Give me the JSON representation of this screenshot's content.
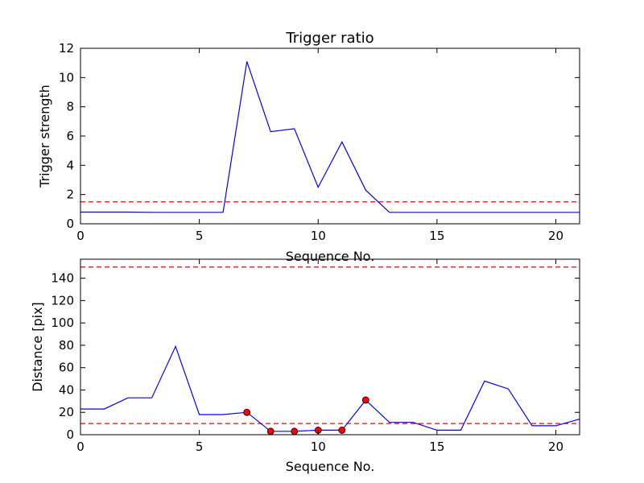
{
  "chart_data": [
    {
      "type": "line",
      "title": "Trigger ratio",
      "xlabel": "Sequence No.",
      "ylabel": "Trigger strength",
      "xlim": [
        0,
        21
      ],
      "ylim": [
        0,
        12
      ],
      "xticks": [
        0,
        5,
        10,
        15,
        20
      ],
      "yticks": [
        0,
        2,
        4,
        6,
        8,
        10,
        12
      ],
      "grid": false,
      "series": [
        {
          "color": "#0000ff",
          "style": "solid",
          "x": [
            0,
            1,
            2,
            3,
            4,
            5,
            6,
            7,
            8,
            9,
            10,
            11,
            12,
            13,
            14,
            15,
            16,
            17,
            18,
            19,
            20,
            21
          ],
          "values": [
            0.8,
            0.8,
            0.8,
            0.78,
            0.78,
            0.78,
            0.78,
            11.1,
            6.3,
            6.5,
            2.5,
            5.6,
            2.3,
            0.78,
            0.78,
            0.78,
            0.78,
            0.78,
            0.78,
            0.78,
            0.78,
            0.78
          ]
        }
      ],
      "hlines": [
        {
          "y": 1.5,
          "color": "#ff0000",
          "style": "dashed"
        }
      ]
    },
    {
      "type": "line",
      "title": "",
      "xlabel": "Sequence No.",
      "ylabel": "Distance [pix]",
      "xlim": [
        0,
        21
      ],
      "ylim": [
        0,
        157
      ],
      "xticks": [
        0,
        5,
        10,
        15,
        20
      ],
      "yticks": [
        0,
        20,
        40,
        60,
        80,
        100,
        120,
        140
      ],
      "grid": false,
      "series": [
        {
          "color": "#0000ff",
          "style": "solid",
          "x": [
            0,
            1,
            2,
            3,
            4,
            5,
            6,
            7,
            8,
            9,
            10,
            11,
            12,
            13,
            14,
            15,
            16,
            17,
            18,
            19,
            20,
            21
          ],
          "values": [
            23,
            23,
            33,
            33,
            79,
            18,
            18,
            20,
            3,
            3,
            4,
            4,
            31,
            11,
            11,
            4,
            4,
            48,
            41,
            8,
            8,
            14
          ]
        }
      ],
      "markers": {
        "color": "#ff0000",
        "x": [
          7,
          8,
          9,
          10,
          11,
          12
        ],
        "values": [
          20,
          3,
          3,
          4,
          4,
          31
        ]
      },
      "hlines": [
        {
          "y": 150,
          "color": "#ff0000",
          "style": "dashed"
        },
        {
          "y": 10,
          "color": "#ff0000",
          "style": "dashed"
        }
      ]
    }
  ]
}
